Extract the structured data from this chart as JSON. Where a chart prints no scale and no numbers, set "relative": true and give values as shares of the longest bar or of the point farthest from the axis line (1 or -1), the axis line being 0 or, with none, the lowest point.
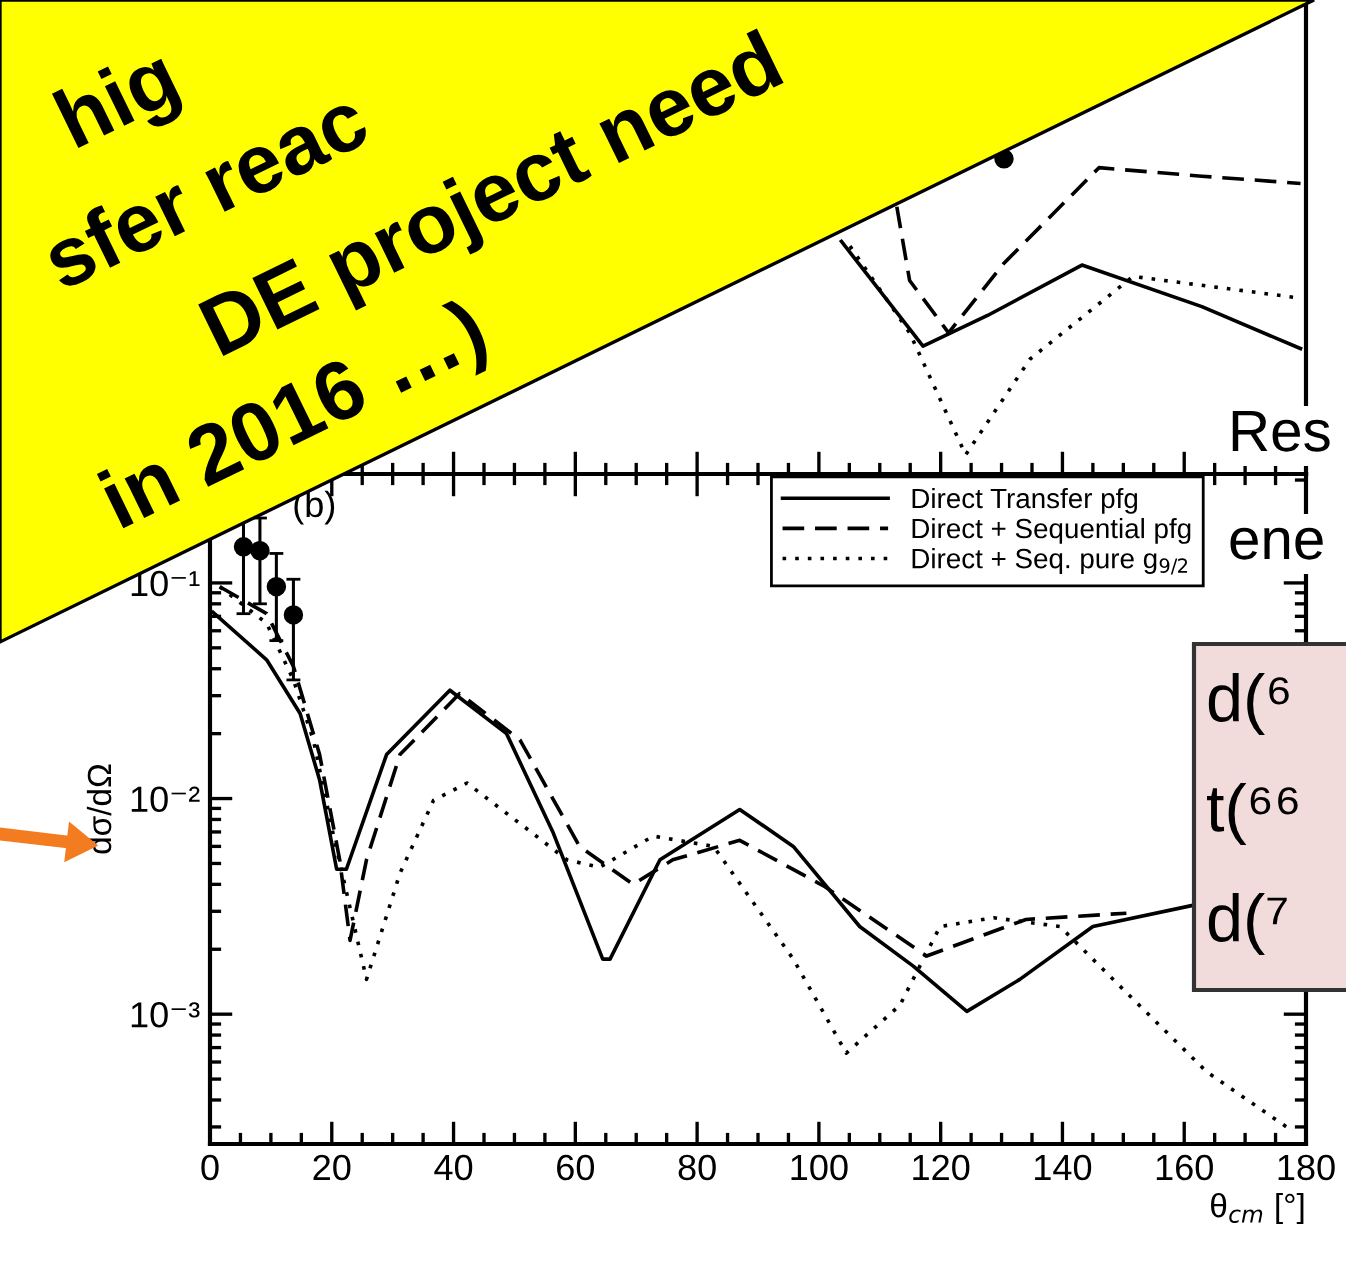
{
  "chart_data": [
    {
      "type": "line",
      "relative": true,
      "xlim": [
        0,
        180
      ],
      "xticks": [
        0,
        20,
        40,
        60,
        80,
        100,
        120,
        140,
        160,
        180
      ],
      "tick_labels": false,
      "series": [
        {
          "color": "#000000",
          "line_style": "solid",
          "x": [
            103.7,
            117.1,
            127.7,
            143.2,
            162.9,
            179.1
          ],
          "values": [
            0.738,
            0.406,
            0.503,
            0.663,
            0.531,
            0.398
          ]
        },
        {
          "color": "#000000",
          "line_style": "dashed",
          "x": [
            112.8,
            114.9,
            121.3,
            130.4,
            146.0,
            162.9,
            179.1
          ],
          "values": [
            0.848,
            0.614,
            0.448,
            0.669,
            0.972,
            0.945,
            0.922
          ]
        },
        {
          "color": "#000000",
          "line_style": "dotted",
          "x": [
            105.1,
            114.9,
            124.1,
            134.7,
            151.6,
            179.1
          ],
          "values": [
            0.723,
            0.448,
            0.061,
            0.365,
            0.627,
            0.558
          ]
        },
        {
          "type": "scatter",
          "color": "#000000",
          "marker": "circle",
          "x": [
            130.4
          ],
          "values": [
            1.0
          ]
        }
      ]
    },
    {
      "type": "line",
      "xlabel": "θ$_{cm}$ [°]",
      "ylabel": "dσ/dΩ",
      "log": "y",
      "xlim": [
        0,
        180
      ],
      "xticks": [
        0,
        20,
        40,
        60,
        80,
        100,
        120,
        140,
        160,
        180
      ],
      "ylim": [
        0.00025,
        0.32
      ],
      "yticks": [
        {
          "value": 0.001,
          "label": "10⁻³"
        },
        {
          "value": 0.01,
          "label": "10⁻²"
        },
        {
          "value": 0.1,
          "label": "10⁻¹"
        }
      ],
      "legend": "top right",
      "annotations": [
        "(b)"
      ],
      "series": [
        {
          "name": "Direct Transfer pfg",
          "color": "#000000",
          "line_style": "solid",
          "x": [
            0.5,
            9.3,
            14.8,
            18,
            20.8,
            22.4,
            29,
            39.4,
            48.7,
            56.4,
            64.5,
            65.7,
            73.9,
            87,
            95.8,
            106.7,
            115.5,
            124.3,
            133,
            145,
            161.5
          ],
          "values": [
            0.073,
            0.044,
            0.0248,
            0.0122,
            0.0047,
            0.0047,
            0.016,
            0.0318,
            0.02,
            0.0069,
            0.0018,
            0.0018,
            0.0052,
            0.0089,
            0.006,
            0.00255,
            0.00167,
            0.00103,
            0.00145,
            0.00255,
            0.0032
          ]
        },
        {
          "name": "Direct + Sequential pfg",
          "color": "#000000",
          "line_style": "dashed",
          "x": [
            1.6,
            9.3,
            13.7,
            18,
            21.3,
            23,
            25.7,
            31.2,
            41,
            50.9,
            60.7,
            69.5,
            76,
            87,
            101,
            117.7,
            134,
            150.5
          ],
          "values": [
            0.096,
            0.072,
            0.041,
            0.016,
            0.0052,
            0.0022,
            0.0052,
            0.016,
            0.0307,
            0.0187,
            0.006,
            0.004,
            0.0052,
            0.0064,
            0.0039,
            0.00186,
            0.00275,
            0.00294
          ]
        },
        {
          "name": "Direct + Seq. pure g$_{9/2}$",
          "color": "#000000",
          "line_style": "dotted",
          "x": [
            1.6,
            9.3,
            13.7,
            17,
            20.2,
            25.7,
            31.2,
            36.7,
            42.2,
            53,
            58.6,
            64,
            72.8,
            82.7,
            95.8,
            104.5,
            113.3,
            119.9,
            128.7,
            139.6,
            150.5,
            163.7,
            176.8
          ],
          "values": [
            0.096,
            0.065,
            0.0355,
            0.0186,
            0.0069,
            0.00145,
            0.0045,
            0.0098,
            0.0118,
            0.0069,
            0.0052,
            0.0048,
            0.0067,
            0.006,
            0.0018,
            0.00066,
            0.0011,
            0.00255,
            0.0028,
            0.00255,
            0.00126,
            0.00054,
            0.0003
          ]
        },
        {
          "type": "scatter",
          "color": "#000000",
          "marker": "circle",
          "x": [
            5.5,
            8.2,
            10.9,
            13.7
          ],
          "values": [
            0.147,
            0.141,
            0.096,
            0.071
          ],
          "errors": [
            [
              0.072,
              0.2
            ],
            [
              0.08,
              0.2
            ],
            [
              0.054,
              0.137
            ],
            [
              0.0355,
              0.104
            ]
          ]
        }
      ]
    },
    {
      "type": "other",
      "annotations": [
        "hig",
        "sfer reac",
        "DE project need",
        "in 2016 …)",
        "Res",
        "ene",
        "d(⁶",
        "t(⁶⁶",
        "d(⁷"
      ]
    }
  ]
}
